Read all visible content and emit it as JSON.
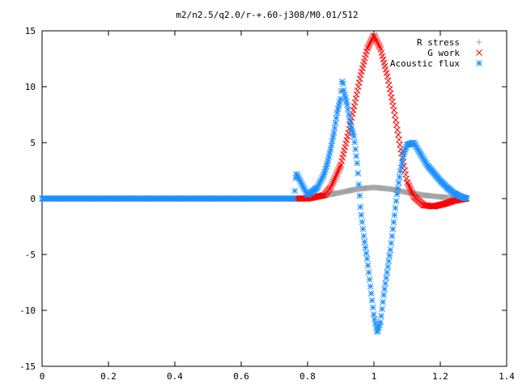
{
  "chart_data": {
    "type": "scatter",
    "title": "m2/n2.5/q2.0/r-+.60-j308/M0.01/512",
    "xlabel": "",
    "ylabel": "",
    "xlim": [
      0,
      1.4
    ],
    "ylim": [
      -15,
      15
    ],
    "x_ticks": [
      "0",
      "0.2",
      "0.4",
      "0.6",
      "0.8",
      "1",
      "1.2",
      "1.4"
    ],
    "y_ticks": [
      "15",
      "10",
      "5",
      "0",
      "-5",
      "-10",
      "-15"
    ],
    "grid": false,
    "legend_position": "top-right",
    "series": [
      {
        "name": "R stress",
        "marker": "plus",
        "color": "#a0a0a0",
        "x_range": [
          0,
          1.28
        ],
        "points": [
          [
            0,
            0
          ],
          [
            0.76,
            0
          ],
          [
            0.8,
            0.05
          ],
          [
            0.85,
            0.25
          ],
          [
            0.9,
            0.55
          ],
          [
            0.95,
            0.85
          ],
          [
            1.0,
            1.0
          ],
          [
            1.05,
            0.85
          ],
          [
            1.1,
            0.55
          ],
          [
            1.15,
            0.3
          ],
          [
            1.2,
            0.15
          ],
          [
            1.25,
            0.05
          ],
          [
            1.28,
            0
          ]
        ]
      },
      {
        "name": "G work",
        "marker": "cross",
        "color": "#ff0000",
        "x_range": [
          0.76,
          1.28
        ],
        "points": [
          [
            0.76,
            0
          ],
          [
            0.8,
            0
          ],
          [
            0.85,
            0.3
          ],
          [
            0.87,
            1.0
          ],
          [
            0.9,
            3.0
          ],
          [
            0.92,
            5.5
          ],
          [
            0.94,
            8.2
          ],
          [
            0.96,
            11.0
          ],
          [
            0.98,
            13.4
          ],
          [
            1.0,
            14.6
          ],
          [
            1.02,
            13.4
          ],
          [
            1.04,
            11.0
          ],
          [
            1.06,
            8.0
          ],
          [
            1.08,
            4.5
          ],
          [
            1.1,
            1.5
          ],
          [
            1.12,
            0.2
          ],
          [
            1.15,
            -0.6
          ],
          [
            1.18,
            -0.7
          ],
          [
            1.21,
            -0.5
          ],
          [
            1.24,
            -0.2
          ],
          [
            1.28,
            0
          ]
        ]
      },
      {
        "name": "Acoustic flux",
        "marker": "star",
        "color": "#1e90ff",
        "x_range": [
          0,
          1.28
        ],
        "points": [
          [
            0,
            0
          ],
          [
            0.76,
            0
          ],
          [
            0.765,
            2.3
          ],
          [
            0.8,
            0.3
          ],
          [
            0.83,
            1.0
          ],
          [
            0.85,
            2.2
          ],
          [
            0.86,
            3.2
          ],
          [
            0.87,
            4.5
          ],
          [
            0.88,
            6.0
          ],
          [
            0.89,
            7.8
          ],
          [
            0.9,
            9.0
          ],
          [
            0.905,
            10.7
          ],
          [
            0.91,
            9.5
          ],
          [
            0.92,
            8.3
          ],
          [
            0.93,
            6.5
          ],
          [
            0.94,
            5.5
          ],
          [
            0.95,
            3.0
          ],
          [
            0.96,
            -1.0
          ],
          [
            0.97,
            -3.5
          ],
          [
            0.98,
            -5.5
          ],
          [
            0.99,
            -8.0
          ],
          [
            1.0,
            -10.5
          ],
          [
            1.01,
            -12.0
          ],
          [
            1.02,
            -11.0
          ],
          [
            1.03,
            -8.5
          ],
          [
            1.04,
            -6.5
          ],
          [
            1.05,
            -4.5
          ],
          [
            1.06,
            -2.0
          ],
          [
            1.07,
            0.5
          ],
          [
            1.08,
            2.5
          ],
          [
            1.09,
            4.0
          ],
          [
            1.1,
            4.8
          ],
          [
            1.12,
            5.0
          ],
          [
            1.14,
            4.0
          ],
          [
            1.16,
            3.0
          ],
          [
            1.18,
            2.3
          ],
          [
            1.2,
            1.6
          ],
          [
            1.22,
            1.0
          ],
          [
            1.24,
            0.5
          ],
          [
            1.26,
            0.2
          ],
          [
            1.28,
            0
          ]
        ]
      }
    ]
  }
}
